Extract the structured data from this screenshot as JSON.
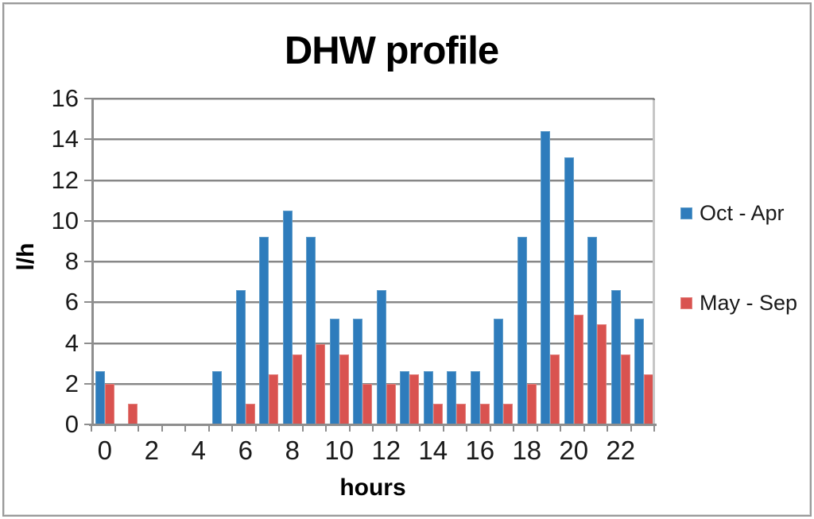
{
  "chart_data": {
    "type": "bar",
    "title": "DHW profile",
    "xlabel": "hours",
    "ylabel": "l/h",
    "categories": [
      0,
      1,
      2,
      3,
      4,
      5,
      6,
      7,
      8,
      9,
      10,
      11,
      12,
      13,
      14,
      15,
      16,
      17,
      18,
      19,
      20,
      21,
      22,
      23
    ],
    "x_tick_labels": [
      "0",
      "2",
      "4",
      "6",
      "8",
      "10",
      "12",
      "14",
      "16",
      "18",
      "20",
      "22"
    ],
    "y_tick_labels": [
      "0",
      "2",
      "4",
      "6",
      "8",
      "10",
      "12",
      "14",
      "16"
    ],
    "ylim": [
      0,
      16
    ],
    "y_tick_step": 2,
    "grid": true,
    "legend_position": "right",
    "series": [
      {
        "name": "Oct - Apr",
        "color": "#2e7cbc",
        "border_color": "#5f9cc9",
        "values": [
          2.6,
          0,
          0,
          0,
          0,
          2.6,
          6.6,
          9.2,
          10.5,
          9.2,
          5.2,
          5.2,
          6.6,
          2.6,
          2.6,
          2.6,
          2.6,
          5.2,
          9.2,
          14.4,
          13.1,
          9.2,
          6.6,
          5.2
        ]
      },
      {
        "name": "May - Sep",
        "color": "#d95350",
        "border_color": "#e3817d",
        "values": [
          2.0,
          1.0,
          0,
          0,
          0,
          0,
          1.0,
          2.45,
          3.45,
          3.95,
          3.45,
          2.0,
          2.0,
          2.45,
          1.0,
          1.0,
          1.0,
          1.0,
          2.0,
          3.45,
          5.4,
          4.9,
          3.45,
          2.45
        ]
      }
    ],
    "grid_color_dark": "#878787",
    "grid_color_light": "#c6c6c6",
    "axis_color": "#8e8e8e",
    "frame_border_color": "#9a9a9a",
    "text_color": "#1a1a1a"
  }
}
